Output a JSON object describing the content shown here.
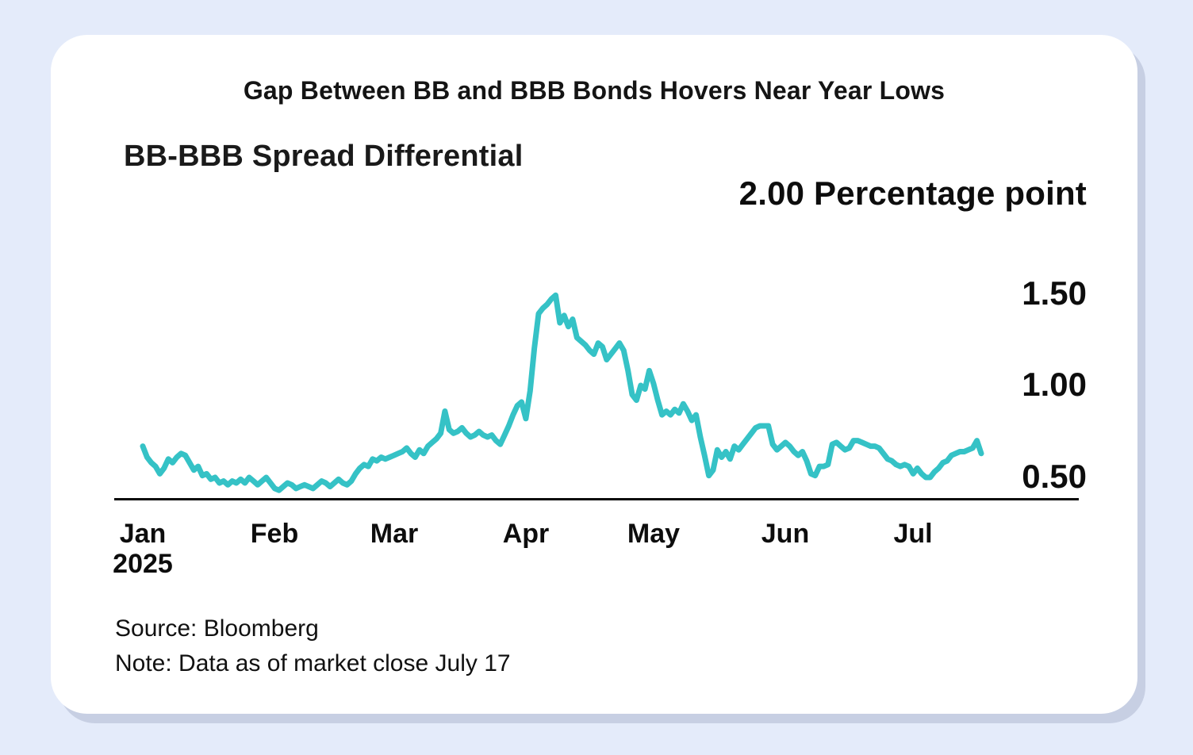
{
  "page": {
    "background_color": "#E4EBFA",
    "card_background": "#FFFFFF",
    "shadow_color": "#C7CEDF"
  },
  "header": {
    "title": "Gap Between BB and BBB Bonds Hovers Near Year Lows"
  },
  "chart": {
    "subtitle": "BB-BBB Spread Differential",
    "unit_label": "2.00 Percentage point",
    "y_ticks": [
      "1.50",
      "1.00",
      "0.50"
    ],
    "x_ticks": [
      "Jan",
      "Feb",
      "Mar",
      "Apr",
      "May",
      "Jun",
      "Jul"
    ],
    "x_year": "2025",
    "line_color": "#35C2C6",
    "axis_color": "#0A0A0A"
  },
  "footer": {
    "source": "Source: Bloomberg",
    "note": "Note: Data as of market close July 17"
  },
  "chart_data": {
    "type": "line",
    "title": "Gap Between BB and BBB Bonds Hovers Near Year Lows",
    "series_name": "BB-BBB Spread Differential",
    "unit": "Percentage point",
    "x_start_date": "2025-01-01",
    "x_end_date": "2025-07-17",
    "frequency": "daily",
    "xlabel": "",
    "ylabel": "Percentage point",
    "ylim": [
      0.38,
      2.0
    ],
    "y_axis_ticks": [
      0.5,
      1.0,
      1.5,
      2.0
    ],
    "x_axis_tick_labels": [
      "Jan 2025",
      "Feb",
      "Mar",
      "Apr",
      "May",
      "Jun",
      "Jul"
    ],
    "grid": false,
    "legend": "none",
    "values": [
      0.67,
      0.61,
      0.58,
      0.56,
      0.52,
      0.55,
      0.6,
      0.58,
      0.61,
      0.63,
      0.62,
      0.58,
      0.54,
      0.56,
      0.51,
      0.52,
      0.49,
      0.5,
      0.47,
      0.48,
      0.46,
      0.48,
      0.47,
      0.49,
      0.47,
      0.5,
      0.48,
      0.46,
      0.48,
      0.5,
      0.47,
      0.44,
      0.43,
      0.45,
      0.47,
      0.46,
      0.44,
      0.45,
      0.46,
      0.45,
      0.44,
      0.46,
      0.48,
      0.47,
      0.45,
      0.47,
      0.49,
      0.47,
      0.46,
      0.48,
      0.52,
      0.55,
      0.57,
      0.56,
      0.6,
      0.59,
      0.61,
      0.6,
      0.61,
      0.62,
      0.63,
      0.64,
      0.66,
      0.63,
      0.61,
      0.65,
      0.63,
      0.67,
      0.69,
      0.71,
      0.74,
      0.86,
      0.76,
      0.74,
      0.75,
      0.77,
      0.74,
      0.72,
      0.73,
      0.75,
      0.73,
      0.72,
      0.73,
      0.7,
      0.68,
      0.73,
      0.78,
      0.84,
      0.89,
      0.91,
      0.82,
      0.97,
      1.2,
      1.39,
      1.42,
      1.44,
      1.47,
      1.49,
      1.34,
      1.38,
      1.32,
      1.36,
      1.26,
      1.24,
      1.22,
      1.19,
      1.17,
      1.23,
      1.21,
      1.14,
      1.17,
      1.2,
      1.23,
      1.19,
      1.08,
      0.95,
      0.92,
      1.0,
      0.98,
      1.08,
      1.01,
      0.92,
      0.84,
      0.86,
      0.84,
      0.87,
      0.85,
      0.9,
      0.86,
      0.81,
      0.84,
      0.72,
      0.62,
      0.51,
      0.54,
      0.65,
      0.61,
      0.64,
      0.6,
      0.67,
      0.65,
      0.68,
      0.71,
      0.74,
      0.77,
      0.78,
      0.78,
      0.78,
      0.68,
      0.65,
      0.67,
      0.69,
      0.67,
      0.64,
      0.62,
      0.64,
      0.59,
      0.52,
      0.51,
      0.56,
      0.56,
      0.57,
      0.68,
      0.69,
      0.67,
      0.65,
      0.66,
      0.7,
      0.7,
      0.69,
      0.68,
      0.67,
      0.67,
      0.66,
      0.63,
      0.6,
      0.59,
      0.57,
      0.56,
      0.57,
      0.56,
      0.52,
      0.55,
      0.52,
      0.5,
      0.5,
      0.53,
      0.55,
      0.58,
      0.59,
      0.62,
      0.63,
      0.64,
      0.64,
      0.65,
      0.66,
      0.7,
      0.63
    ]
  }
}
